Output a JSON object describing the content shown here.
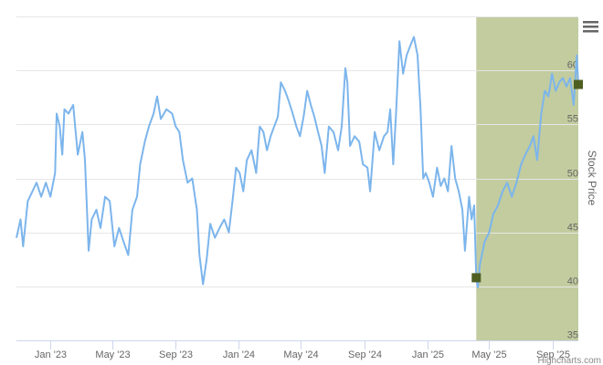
{
  "menu_icon": "hamburger-menu-icon",
  "credits": "Highcharts.com",
  "chart_data": {
    "type": "line",
    "title": "",
    "xlabel": "",
    "ylabel": "Stock Price",
    "xlim": [
      "2022-10-27",
      "2025-10-21"
    ],
    "ylim": [
      35,
      65
    ],
    "yticks": [
      35,
      40,
      45,
      50,
      55,
      60,
      65
    ],
    "xticks": [
      {
        "date": "2023-01-01",
        "label": "Jan '23"
      },
      {
        "date": "2023-05-01",
        "label": "May '23"
      },
      {
        "date": "2023-09-01",
        "label": "Sep '23"
      },
      {
        "date": "2024-01-01",
        "label": "Jan '24"
      },
      {
        "date": "2024-05-01",
        "label": "May '24"
      },
      {
        "date": "2024-09-01",
        "label": "Sep '24"
      },
      {
        "date": "2025-01-01",
        "label": "Jan '25"
      },
      {
        "date": "2025-05-01",
        "label": "May '25"
      },
      {
        "date": "2025-09-01",
        "label": "Sep '25"
      }
    ],
    "grid": true,
    "colors": {
      "line": "#7cb5ec",
      "band": "#c2cc9f",
      "marker": "#4f5f22",
      "grid": "#e6e6e6",
      "axis": "#ccd6eb"
    },
    "highlight_band": {
      "from": "2025-04-06",
      "to": "2025-10-21"
    },
    "markers": [
      {
        "date": "2025-04-06",
        "value": 40.8
      },
      {
        "date": "2025-10-21",
        "value": 58.7
      }
    ],
    "series": [
      {
        "points": [
          [
            "2022-10-27",
            44.5
          ],
          [
            "2022-11-04",
            46.2
          ],
          [
            "2022-11-09",
            43.7
          ],
          [
            "2022-11-18",
            47.9
          ],
          [
            "2022-11-27",
            48.8
          ],
          [
            "2022-12-05",
            49.6
          ],
          [
            "2022-12-14",
            48.3
          ],
          [
            "2022-12-23",
            49.6
          ],
          [
            "2023-01-01",
            48.3
          ],
          [
            "2023-01-10",
            50.5
          ],
          [
            "2023-01-13",
            56.0
          ],
          [
            "2023-01-19",
            54.8
          ],
          [
            "2023-01-24",
            52.2
          ],
          [
            "2023-01-28",
            56.4
          ],
          [
            "2023-02-05",
            56.0
          ],
          [
            "2023-02-14",
            56.8
          ],
          [
            "2023-02-23",
            52.2
          ],
          [
            "2023-03-04",
            54.3
          ],
          [
            "2023-03-09",
            51.7
          ],
          [
            "2023-03-16",
            43.3
          ],
          [
            "2023-03-22",
            46.2
          ],
          [
            "2023-03-31",
            47.1
          ],
          [
            "2023-04-08",
            45.4
          ],
          [
            "2023-04-17",
            48.3
          ],
          [
            "2023-04-26",
            47.9
          ],
          [
            "2023-05-05",
            43.7
          ],
          [
            "2023-05-14",
            45.4
          ],
          [
            "2023-05-23",
            44.1
          ],
          [
            "2023-06-01",
            42.9
          ],
          [
            "2023-06-09",
            47.1
          ],
          [
            "2023-06-18",
            48.3
          ],
          [
            "2023-06-24",
            51.3
          ],
          [
            "2023-07-03",
            53.4
          ],
          [
            "2023-07-11",
            54.8
          ],
          [
            "2023-07-20",
            56.0
          ],
          [
            "2023-07-27",
            57.6
          ],
          [
            "2023-08-03",
            55.5
          ],
          [
            "2023-08-14",
            56.4
          ],
          [
            "2023-08-25",
            56.0
          ],
          [
            "2023-09-01",
            54.8
          ],
          [
            "2023-09-08",
            54.3
          ],
          [
            "2023-09-15",
            51.7
          ],
          [
            "2023-09-24",
            49.6
          ],
          [
            "2023-10-03",
            50.0
          ],
          [
            "2023-10-12",
            47.1
          ],
          [
            "2023-10-17",
            42.9
          ],
          [
            "2023-10-24",
            40.2
          ],
          [
            "2023-10-31",
            42.5
          ],
          [
            "2023-11-07",
            45.8
          ],
          [
            "2023-11-16",
            44.5
          ],
          [
            "2023-11-25",
            45.4
          ],
          [
            "2023-12-04",
            46.2
          ],
          [
            "2023-12-13",
            45.0
          ],
          [
            "2023-12-21",
            48.3
          ],
          [
            "2023-12-27",
            51.0
          ],
          [
            "2024-01-03",
            50.5
          ],
          [
            "2024-01-10",
            48.8
          ],
          [
            "2024-01-17",
            51.7
          ],
          [
            "2024-01-26",
            52.6
          ],
          [
            "2024-02-04",
            50.5
          ],
          [
            "2024-02-11",
            54.8
          ],
          [
            "2024-02-18",
            54.3
          ],
          [
            "2024-02-25",
            52.6
          ],
          [
            "2024-03-03",
            53.9
          ],
          [
            "2024-03-10",
            54.8
          ],
          [
            "2024-03-17",
            55.7
          ],
          [
            "2024-03-23",
            58.9
          ],
          [
            "2024-03-31",
            58.1
          ],
          [
            "2024-04-07",
            57.2
          ],
          [
            "2024-04-15",
            56.0
          ],
          [
            "2024-04-22",
            54.8
          ],
          [
            "2024-04-29",
            53.9
          ],
          [
            "2024-05-06",
            55.7
          ],
          [
            "2024-05-13",
            58.1
          ],
          [
            "2024-05-20",
            56.8
          ],
          [
            "2024-05-27",
            55.7
          ],
          [
            "2024-06-03",
            54.3
          ],
          [
            "2024-06-10",
            53.0
          ],
          [
            "2024-06-16",
            50.5
          ],
          [
            "2024-06-24",
            54.8
          ],
          [
            "2024-07-03",
            54.3
          ],
          [
            "2024-07-12",
            52.6
          ],
          [
            "2024-07-19",
            54.8
          ],
          [
            "2024-07-26",
            60.2
          ],
          [
            "2024-07-30",
            58.9
          ],
          [
            "2024-08-04",
            53.0
          ],
          [
            "2024-08-13",
            53.9
          ],
          [
            "2024-08-22",
            53.4
          ],
          [
            "2024-08-29",
            51.3
          ],
          [
            "2024-09-07",
            51.0
          ],
          [
            "2024-09-12",
            48.8
          ],
          [
            "2024-09-21",
            54.3
          ],
          [
            "2024-09-30",
            52.6
          ],
          [
            "2024-10-09",
            53.9
          ],
          [
            "2024-10-16",
            54.3
          ],
          [
            "2024-10-21",
            56.4
          ],
          [
            "2024-10-27",
            51.3
          ],
          [
            "2024-11-01",
            55.7
          ],
          [
            "2024-11-08",
            62.7
          ],
          [
            "2024-11-15",
            59.7
          ],
          [
            "2024-11-22",
            61.4
          ],
          [
            "2024-11-29",
            62.3
          ],
          [
            "2024-12-06",
            63.1
          ],
          [
            "2024-12-13",
            61.4
          ],
          [
            "2024-12-19",
            56.4
          ],
          [
            "2024-12-24",
            50.0
          ],
          [
            "2024-12-29",
            50.5
          ],
          [
            "2025-01-05",
            49.6
          ],
          [
            "2025-01-12",
            48.3
          ],
          [
            "2025-01-20",
            51.0
          ],
          [
            "2025-01-27",
            49.3
          ],
          [
            "2025-02-03",
            50.0
          ],
          [
            "2025-02-10",
            48.8
          ],
          [
            "2025-02-17",
            53.0
          ],
          [
            "2025-02-24",
            50.0
          ],
          [
            "2025-03-03",
            48.8
          ],
          [
            "2025-03-10",
            47.1
          ],
          [
            "2025-03-15",
            43.3
          ],
          [
            "2025-03-23",
            48.3
          ],
          [
            "2025-03-28",
            46.2
          ],
          [
            "2025-04-02",
            47.5
          ],
          [
            "2025-04-06",
            40.7
          ],
          [
            "2025-04-09",
            39.9
          ],
          [
            "2025-04-13",
            42.0
          ],
          [
            "2025-04-22",
            44.1
          ],
          [
            "2025-05-01",
            45.0
          ],
          [
            "2025-05-09",
            46.7
          ],
          [
            "2025-05-18",
            47.5
          ],
          [
            "2025-05-27",
            48.8
          ],
          [
            "2025-06-05",
            49.6
          ],
          [
            "2025-06-14",
            48.3
          ],
          [
            "2025-06-23",
            49.6
          ],
          [
            "2025-07-02",
            51.3
          ],
          [
            "2025-07-10",
            52.2
          ],
          [
            "2025-07-19",
            53.0
          ],
          [
            "2025-07-26",
            53.9
          ],
          [
            "2025-08-02",
            51.7
          ],
          [
            "2025-08-10",
            56.0
          ],
          [
            "2025-08-17",
            58.1
          ],
          [
            "2025-08-24",
            57.6
          ],
          [
            "2025-08-31",
            59.7
          ],
          [
            "2025-09-07",
            58.1
          ],
          [
            "2025-09-14",
            58.9
          ],
          [
            "2025-09-21",
            59.3
          ],
          [
            "2025-09-28",
            58.5
          ],
          [
            "2025-10-05",
            59.3
          ],
          [
            "2025-10-12",
            56.8
          ],
          [
            "2025-10-18",
            61.4
          ],
          [
            "2025-10-21",
            58.7
          ]
        ]
      }
    ]
  }
}
